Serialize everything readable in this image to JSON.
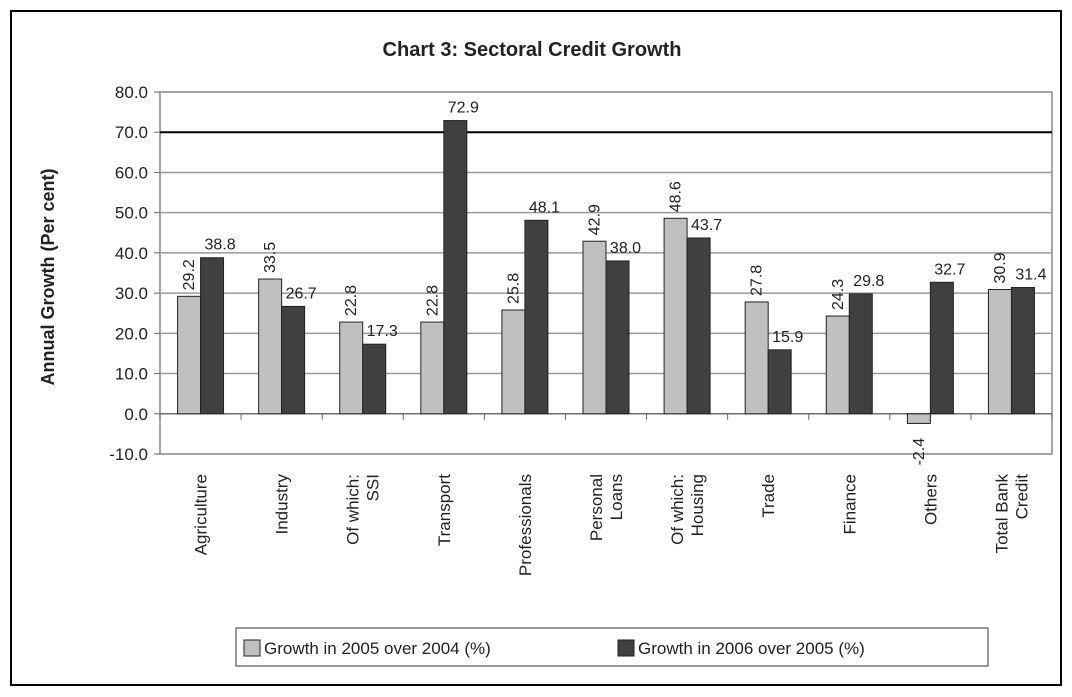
{
  "chart_data": {
    "type": "bar",
    "title": "Chart 3: Sectoral Credit Growth",
    "xlabel": "",
    "ylabel": "Annual Growth (Per cent)",
    "ylim": [
      -10,
      80
    ],
    "yticks": [
      "80.0",
      "70.0",
      "60.0",
      "50.0",
      "40.0",
      "30.0",
      "20.0",
      "10.0",
      "0.0",
      "-10.0"
    ],
    "grid": true,
    "legend_position": "bottom",
    "categories": [
      [
        "Agriculture"
      ],
      [
        "Industry"
      ],
      [
        "Of which:",
        "SSI"
      ],
      [
        "Transport"
      ],
      [
        "Professionals"
      ],
      [
        "Personal",
        "Loans"
      ],
      [
        "Of which:",
        "Housing"
      ],
      [
        "Trade"
      ],
      [
        "Finance"
      ],
      [
        "Others"
      ],
      [
        "Total Bank",
        "Credit"
      ]
    ],
    "series": [
      {
        "name": "Growth in 2005 over 2004 (%)",
        "color": "#c0c0c0",
        "values": [
          29.2,
          33.5,
          22.8,
          22.8,
          25.8,
          42.9,
          48.6,
          27.8,
          24.3,
          -2.4,
          30.9
        ],
        "labels": [
          "29.2",
          "33.5",
          "22.8",
          "22.8",
          "25.8",
          "42.9",
          "48.6",
          "27.8",
          "24.3",
          "-2.4",
          "30.9"
        ]
      },
      {
        "name": "Growth in 2006 over 2005 (%)",
        "color": "#404040",
        "values": [
          38.8,
          26.7,
          17.3,
          72.9,
          48.1,
          38.0,
          43.7,
          15.9,
          29.8,
          32.7,
          31.4
        ],
        "labels": [
          "38.8",
          "26.7",
          "17.3",
          "72.9",
          "48.1",
          "38.0",
          "43.7",
          "15.9",
          "29.8",
          "32.7",
          "31.4"
        ]
      }
    ]
  }
}
